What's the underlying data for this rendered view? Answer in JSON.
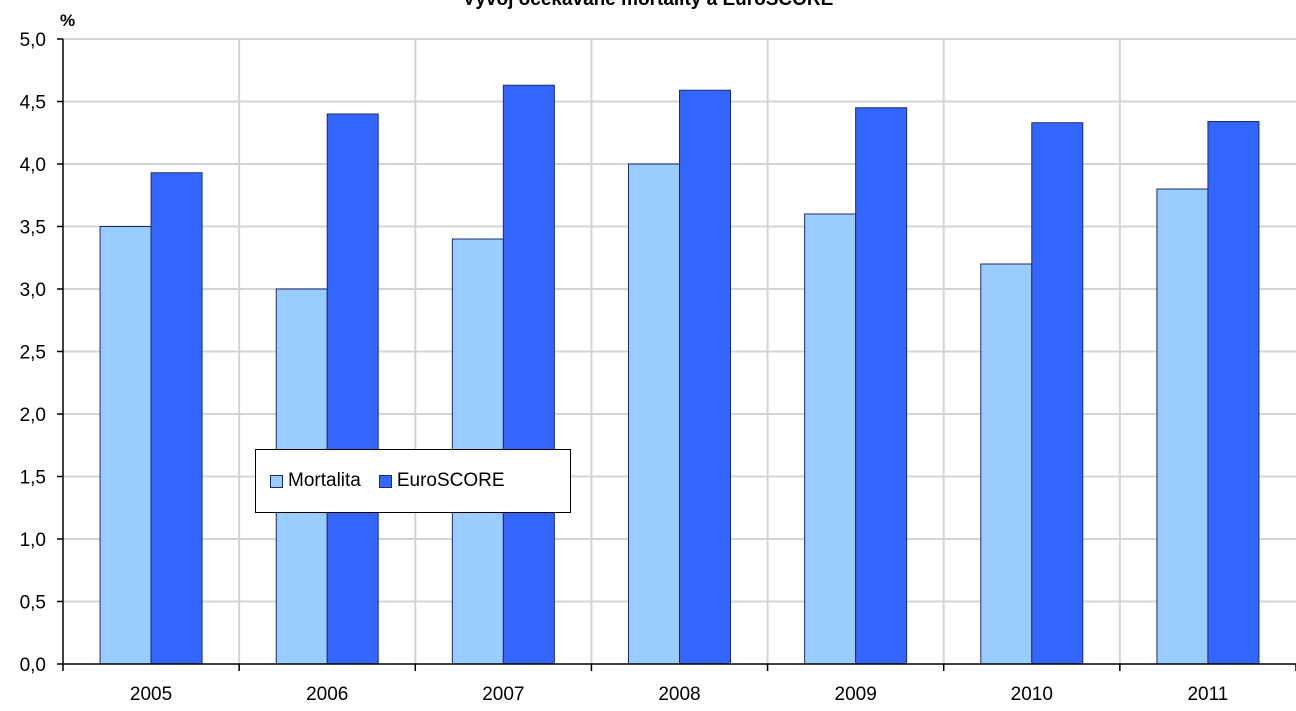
{
  "chart_data": {
    "type": "bar",
    "title": "Vývoj očekávané mortality a EuroSCORE",
    "ylabel": "%",
    "xlabel": "",
    "categories": [
      "2005",
      "2006",
      "2007",
      "2008",
      "2009",
      "2010",
      "2011"
    ],
    "series": [
      {
        "name": "Mortalita",
        "values": [
          3.5,
          3.0,
          3.4,
          4.0,
          3.6,
          3.2,
          3.8
        ],
        "color": "#99ccff"
      },
      {
        "name": "EuroSCORE",
        "values": [
          3.93,
          4.4,
          4.63,
          4.59,
          4.45,
          4.33,
          4.34
        ],
        "color": "#3366ff"
      }
    ],
    "ylim": [
      0,
      5
    ],
    "yticks": [
      "0,0",
      "0,5",
      "1,0",
      "1,5",
      "2,0",
      "2,5",
      "3,0",
      "3,5",
      "4,0",
      "4,5",
      "5,0"
    ],
    "grid": true,
    "legend_position": "center-left",
    "gridline_color": "#d4d4d4",
    "bar_outline_color": "#1f2a6a"
  }
}
